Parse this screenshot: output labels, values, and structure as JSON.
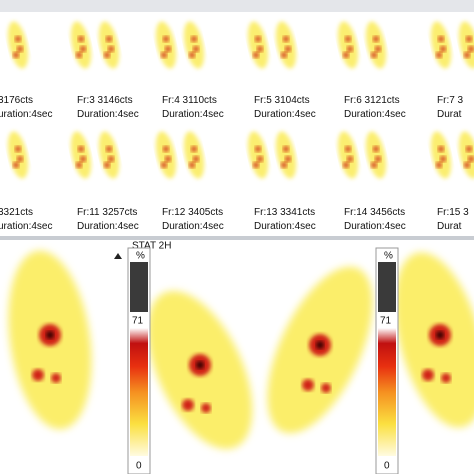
{
  "frames_top": [
    {
      "count": "3176cts",
      "duration": "uration:4sec"
    },
    {
      "count": "Fr:3 3146cts",
      "duration": "Duration:4sec"
    },
    {
      "count": "Fr:4 3110cts",
      "duration": "Duration:4sec"
    },
    {
      "count": "Fr:5 3104cts",
      "duration": "Duration:4sec"
    },
    {
      "count": "Fr:6 3121cts",
      "duration": "Duration:4sec"
    },
    {
      "count": "Fr:7 3",
      "duration": "Durat"
    }
  ],
  "frames_bottom": [
    {
      "count": "3321cts",
      "duration": "uration:4sec"
    },
    {
      "count": "Fr:11 3257cts",
      "duration": "Duration:4sec"
    },
    {
      "count": "Fr:12 3405cts",
      "duration": "Duration:4sec"
    },
    {
      "count": "Fr:13 3341cts",
      "duration": "Duration:4sec"
    },
    {
      "count": "Fr:14 3456cts",
      "duration": "Duration:4sec"
    },
    {
      "count": "Fr:15 3",
      "duration": "Durat"
    }
  ],
  "static_panel": {
    "title": "STAT 2H",
    "colorbars": [
      {
        "unit": "%",
        "max": "71",
        "min": "0"
      },
      {
        "unit": "%",
        "max": "71",
        "min": "0"
      }
    ]
  }
}
